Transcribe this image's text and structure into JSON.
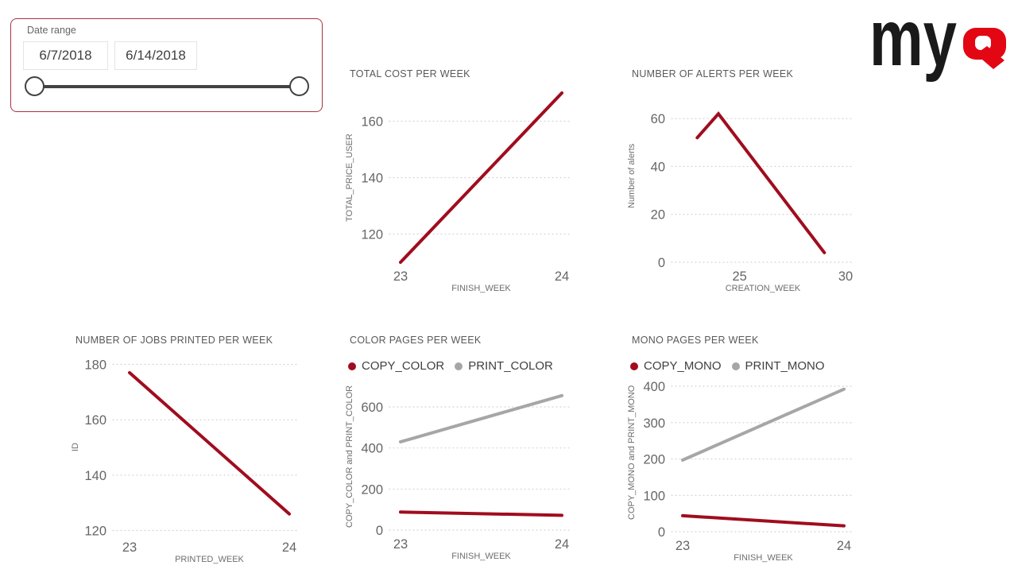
{
  "colors": {
    "line_red": "#a00d1e",
    "line_gray": "#a6a6a6",
    "grid": "#d4d4d4",
    "tick_text": "#666666",
    "title_text": "#595959"
  },
  "logo": {
    "text_my": "my",
    "q_glyph": "Q",
    "my_color": "#1a1a1a",
    "q_color": "#e30613"
  },
  "slicer": {
    "label": "Date range",
    "start_date": "6/7/2018",
    "end_date": "6/14/2018",
    "border_color": "#a5333e",
    "track_color": "#424242"
  },
  "chart_data": [
    {
      "type": "line",
      "title": "TOTAL COST PER WEEK",
      "xlabel": "FINISH_WEEK",
      "ylabel": "TOTAL_PRICE_USER",
      "x": [
        23,
        24
      ],
      "series": [
        {
          "name": "TOTAL_PRICE_USER",
          "color": "#a00d1e",
          "values": [
            110,
            170
          ]
        }
      ],
      "xlim": [
        23,
        24
      ],
      "ylim": [
        110,
        170
      ],
      "yticks": [
        120,
        140,
        160
      ],
      "xticks": [
        23,
        24
      ],
      "grid": "dotted-horizontal",
      "legend": null
    },
    {
      "type": "line",
      "title": "NUMBER OF ALERTS PER WEEK",
      "xlabel": "CREATION_WEEK",
      "ylabel": "Number of alerts",
      "x": [
        23,
        24,
        29
      ],
      "series": [
        {
          "name": "Number of alerts",
          "color": "#a00d1e",
          "values": [
            52,
            62,
            4
          ]
        }
      ],
      "xlim": [
        21.9,
        30.3
      ],
      "ylim": [
        0,
        72
      ],
      "yticks": [
        0,
        20,
        40,
        60
      ],
      "xticks": [
        25,
        30
      ],
      "grid": "dotted-horizontal",
      "legend": null
    },
    {
      "type": "line",
      "title": "NUMBER OF JOBS PRINTED PER WEEK",
      "xlabel": "PRINTED_WEEK",
      "ylabel": "ID",
      "x": [
        23,
        24
      ],
      "series": [
        {
          "name": "ID",
          "color": "#a00d1e",
          "values": [
            177,
            126
          ]
        }
      ],
      "xlim": [
        23,
        24
      ],
      "ylim": [
        119,
        181
      ],
      "yticks": [
        120,
        140,
        160,
        180
      ],
      "xticks": [
        23,
        24
      ],
      "grid": "dotted-horizontal",
      "legend": null
    },
    {
      "type": "line",
      "title": "COLOR PAGES PER WEEK",
      "xlabel": "FINISH_WEEK",
      "ylabel": "COPY_COLOR and PRINT_COLOR",
      "x": [
        23,
        24
      ],
      "legend": [
        {
          "label": "COPY_COLOR",
          "color": "#a00d1e"
        },
        {
          "label": "PRINT_COLOR",
          "color": "#a6a6a6"
        }
      ],
      "series": [
        {
          "name": "COPY_COLOR",
          "color": "#a00d1e",
          "values": [
            88,
            72
          ]
        },
        {
          "name": "PRINT_COLOR",
          "color": "#a6a6a6",
          "values": [
            430,
            655
          ]
        }
      ],
      "xlim": [
        23,
        24
      ],
      "ylim": [
        0,
        720
      ],
      "yticks": [
        0,
        200,
        400,
        600
      ],
      "xticks": [
        23,
        24
      ],
      "grid": "dotted-horizontal"
    },
    {
      "type": "line",
      "title": "MONO PAGES PER WEEK",
      "xlabel": "FINISH_WEEK",
      "ylabel": "COPY_MONO and PRINT_MONO",
      "x": [
        23,
        24
      ],
      "legend": [
        {
          "label": "COPY_MONO",
          "color": "#a00d1e"
        },
        {
          "label": "PRINT_MONO",
          "color": "#a6a6a6"
        }
      ],
      "series": [
        {
          "name": "COPY_MONO",
          "color": "#a00d1e",
          "values": [
            44,
            16
          ]
        },
        {
          "name": "PRINT_MONO",
          "color": "#a6a6a6",
          "values": [
            197,
            392
          ]
        }
      ],
      "xlim": [
        23,
        24
      ],
      "ylim": [
        0,
        435
      ],
      "yticks": [
        0,
        100,
        200,
        300,
        400
      ],
      "xticks": [
        23,
        24
      ],
      "grid": "dotted-horizontal"
    }
  ]
}
